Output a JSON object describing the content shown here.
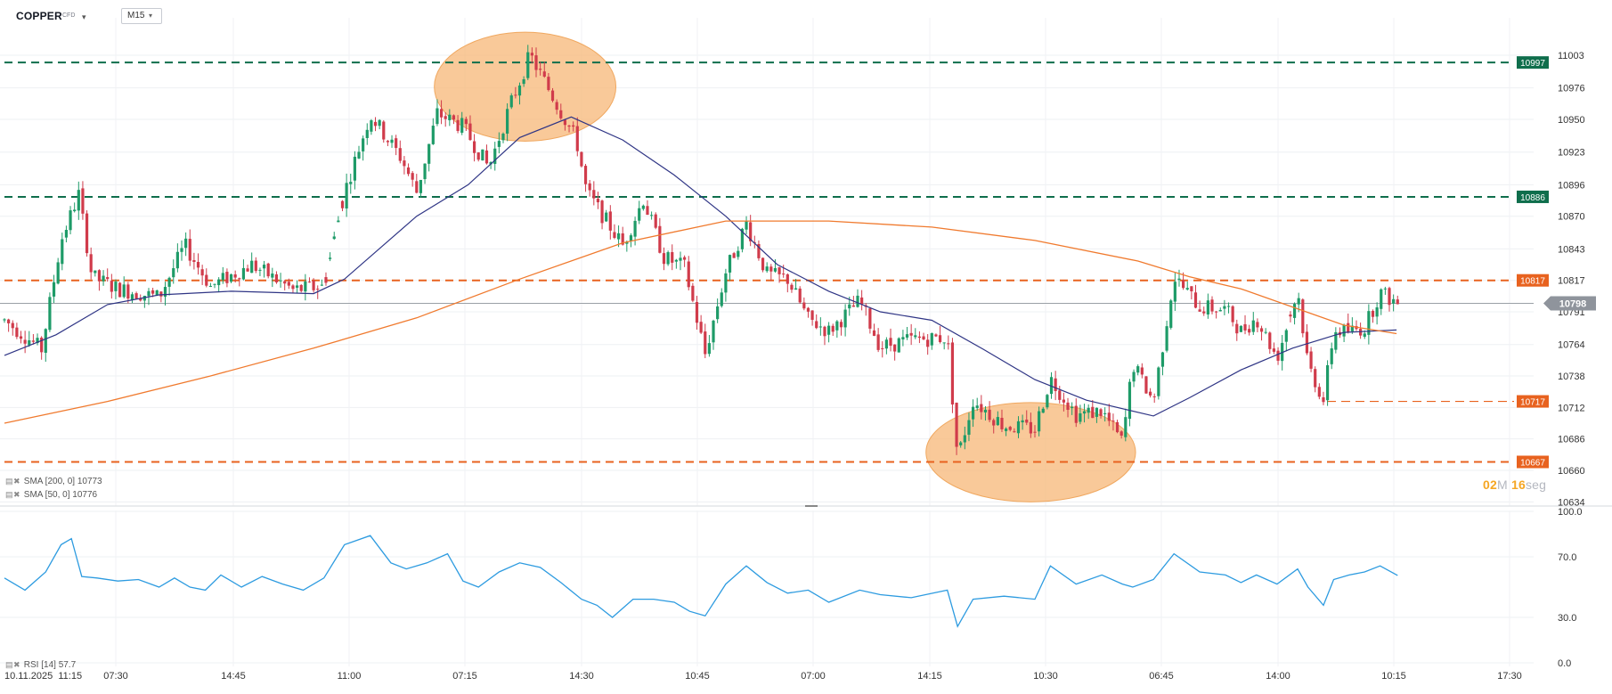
{
  "header": {
    "symbol": "COPPER",
    "symbol_type": "CFD",
    "timeframe": "M15"
  },
  "legend": {
    "sma200": "SMA [200, 0] 10773",
    "sma50": "SMA [50, 0] 10776",
    "rsi": "RSI [14] 57.7"
  },
  "timer": {
    "minutes": "02",
    "m_unit": "M",
    "seconds": "16",
    "s_unit": "seg"
  },
  "colors": {
    "bull": "#1e9b68",
    "bear": "#d03b4b",
    "sma50": "#2f3585",
    "sma200": "#f07a2e",
    "rsi": "#2d9be0",
    "level_green": "#0f6e4c",
    "level_orange": "#e8621f",
    "highlight": "#f7b777"
  },
  "chart_data": [
    {
      "type": "candlestick",
      "symbol": "COPPER",
      "timeframe": "M15",
      "ylim": [
        10634,
        11010
      ],
      "y_ticks": [
        11003,
        10976,
        10950,
        10923,
        10896,
        10870,
        10843,
        10817,
        10791,
        10764,
        10738,
        10712,
        10686,
        10660,
        10634
      ],
      "x_ticks": [
        "10.11.2025  11:15",
        "07:30",
        "14:45",
        "11:00",
        "07:15",
        "14:30",
        "10:45",
        "07:00",
        "14:15",
        "10:30",
        "06:45",
        "14:00",
        "10:15",
        "17:30"
      ],
      "current_price": 10798,
      "horizontal_levels": [
        {
          "value": 10997,
          "label": "10997",
          "color": "#0f6e4c",
          "style": "dashed"
        },
        {
          "value": 10886,
          "label": "10886",
          "color": "#0f6e4c",
          "style": "dashed"
        },
        {
          "value": 10817,
          "label": "10817",
          "color": "#e8621f",
          "style": "dashed"
        },
        {
          "value": 10717,
          "label": "10717",
          "color": "#e8621f",
          "style": "dashed-partial"
        },
        {
          "value": 10667,
          "label": "10667",
          "color": "#e8621f",
          "style": "dashed"
        }
      ],
      "highlights": [
        {
          "shape": "ellipse",
          "x_range": [
            "07:15",
            "14:30"
          ],
          "y_range": [
            10932,
            11022
          ]
        },
        {
          "shape": "ellipse",
          "x_range": [
            "14:15",
            "10:30"
          ],
          "y_range": [
            10634,
            10716
          ]
        }
      ],
      "anchors": [
        [
          0,
          10784
        ],
        [
          20,
          10771
        ],
        [
          36,
          10760
        ],
        [
          55,
          10850
        ],
        [
          72,
          10888
        ],
        [
          85,
          10820
        ],
        [
          110,
          10810
        ],
        [
          150,
          10803
        ],
        [
          175,
          10846
        ],
        [
          200,
          10812
        ],
        [
          240,
          10830
        ],
        [
          280,
          10809
        ],
        [
          310,
          10812
        ],
        [
          330,
          10890
        ],
        [
          355,
          10954
        ],
        [
          385,
          10918
        ],
        [
          400,
          10890
        ],
        [
          420,
          10955
        ],
        [
          445,
          10944
        ],
        [
          470,
          10910
        ],
        [
          490,
          10960
        ],
        [
          510,
          11003
        ],
        [
          530,
          10972
        ],
        [
          555,
          10933
        ],
        [
          565,
          10890
        ],
        [
          585,
          10865
        ],
        [
          600,
          10846
        ],
        [
          620,
          10884
        ],
        [
          640,
          10836
        ],
        [
          660,
          10828
        ],
        [
          680,
          10756
        ],
        [
          700,
          10824
        ],
        [
          720,
          10864
        ],
        [
          740,
          10822
        ],
        [
          760,
          10818
        ],
        [
          780,
          10785
        ],
        [
          800,
          10775
        ],
        [
          830,
          10800
        ],
        [
          850,
          10762
        ],
        [
          880,
          10768
        ],
        [
          915,
          10770
        ],
        [
          925,
          10670
        ],
        [
          940,
          10718
        ],
        [
          970,
          10697
        ],
        [
          1000,
          10694
        ],
        [
          1015,
          10736
        ],
        [
          1040,
          10706
        ],
        [
          1065,
          10709
        ],
        [
          1085,
          10683
        ],
        [
          1095,
          10748
        ],
        [
          1115,
          10717
        ],
        [
          1135,
          10820
        ],
        [
          1160,
          10795
        ],
        [
          1185,
          10793
        ],
        [
          1200,
          10775
        ],
        [
          1215,
          10786
        ],
        [
          1235,
          10753
        ],
        [
          1255,
          10808
        ],
        [
          1265,
          10748
        ],
        [
          1280,
          10718
        ],
        [
          1290,
          10775
        ],
        [
          1305,
          10775
        ],
        [
          1320,
          10778
        ],
        [
          1335,
          10807
        ],
        [
          1352,
          10798
        ]
      ],
      "sma50_points": [
        [
          0,
          10755
        ],
        [
          50,
          10772
        ],
        [
          100,
          10797
        ],
        [
          150,
          10805
        ],
        [
          220,
          10808
        ],
        [
          300,
          10806
        ],
        [
          330,
          10818
        ],
        [
          400,
          10870
        ],
        [
          450,
          10896
        ],
        [
          500,
          10935
        ],
        [
          550,
          10952
        ],
        [
          600,
          10933
        ],
        [
          650,
          10904
        ],
        [
          700,
          10870
        ],
        [
          750,
          10830
        ],
        [
          800,
          10808
        ],
        [
          850,
          10791
        ],
        [
          900,
          10784
        ],
        [
          950,
          10760
        ],
        [
          1000,
          10735
        ],
        [
          1050,
          10718
        ],
        [
          1115,
          10705
        ],
        [
          1150,
          10720
        ],
        [
          1200,
          10743
        ],
        [
          1250,
          10761
        ],
        [
          1300,
          10774
        ],
        [
          1351,
          10776
        ]
      ],
      "sma200_points": [
        [
          0,
          10699
        ],
        [
          100,
          10717
        ],
        [
          200,
          10738
        ],
        [
          300,
          10761
        ],
        [
          400,
          10786
        ],
        [
          500,
          10818
        ],
        [
          600,
          10848
        ],
        [
          700,
          10866
        ],
        [
          800,
          10866
        ],
        [
          900,
          10861
        ],
        [
          1000,
          10850
        ],
        [
          1100,
          10833
        ],
        [
          1150,
          10820
        ],
        [
          1200,
          10810
        ],
        [
          1250,
          10795
        ],
        [
          1300,
          10780
        ],
        [
          1351,
          10773
        ]
      ]
    },
    {
      "type": "line",
      "name": "RSI [14]",
      "ylim": [
        0,
        100
      ],
      "y_ticks": [
        100.0,
        70.0,
        30.0,
        0.0
      ],
      "last_value": 57.7,
      "points": [
        [
          0,
          56
        ],
        [
          20,
          48
        ],
        [
          40,
          60
        ],
        [
          55,
          78
        ],
        [
          65,
          82
        ],
        [
          75,
          57
        ],
        [
          90,
          56
        ],
        [
          110,
          54
        ],
        [
          130,
          55
        ],
        [
          150,
          50
        ],
        [
          165,
          56
        ],
        [
          180,
          50
        ],
        [
          195,
          48
        ],
        [
          210,
          58
        ],
        [
          230,
          50
        ],
        [
          250,
          57
        ],
        [
          270,
          52
        ],
        [
          290,
          48
        ],
        [
          310,
          56
        ],
        [
          330,
          78
        ],
        [
          355,
          84
        ],
        [
          375,
          66
        ],
        [
          390,
          62
        ],
        [
          410,
          66
        ],
        [
          430,
          72
        ],
        [
          445,
          54
        ],
        [
          460,
          50
        ],
        [
          480,
          60
        ],
        [
          500,
          66
        ],
        [
          520,
          63
        ],
        [
          540,
          53
        ],
        [
          560,
          42
        ],
        [
          575,
          38
        ],
        [
          590,
          30
        ],
        [
          610,
          42
        ],
        [
          630,
          42
        ],
        [
          650,
          40
        ],
        [
          665,
          34
        ],
        [
          680,
          31
        ],
        [
          700,
          52
        ],
        [
          720,
          64
        ],
        [
          740,
          53
        ],
        [
          760,
          46
        ],
        [
          780,
          48
        ],
        [
          800,
          40
        ],
        [
          830,
          48
        ],
        [
          850,
          45
        ],
        [
          880,
          43
        ],
        [
          915,
          48
        ],
        [
          925,
          24
        ],
        [
          940,
          42
        ],
        [
          970,
          44
        ],
        [
          1000,
          42
        ],
        [
          1015,
          64
        ],
        [
          1040,
          52
        ],
        [
          1065,
          58
        ],
        [
          1085,
          52
        ],
        [
          1095,
          50
        ],
        [
          1115,
          55
        ],
        [
          1135,
          72
        ],
        [
          1160,
          60
        ],
        [
          1185,
          58
        ],
        [
          1200,
          53
        ],
        [
          1215,
          58
        ],
        [
          1235,
          52
        ],
        [
          1255,
          62
        ],
        [
          1265,
          50
        ],
        [
          1280,
          38
        ],
        [
          1290,
          55
        ],
        [
          1305,
          58
        ],
        [
          1320,
          60
        ],
        [
          1335,
          64
        ],
        [
          1352,
          57.7
        ]
      ]
    }
  ]
}
